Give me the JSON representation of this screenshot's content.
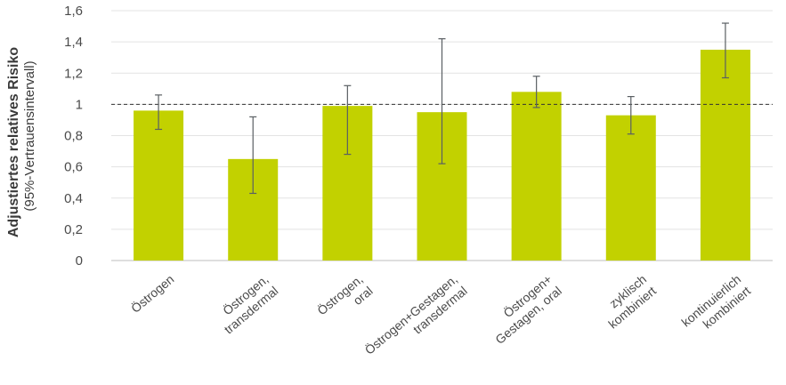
{
  "chart_data": {
    "type": "bar",
    "ylabel": "Adjustiertes relatives  Risiko",
    "ylabel_sub": "(95%-Vertrauensintervall)",
    "ylim": [
      0,
      1.6
    ],
    "y_ticks": [
      0,
      0.2,
      0.4,
      0.6,
      0.8,
      1,
      1.2,
      1.4,
      1.6
    ],
    "y_tick_labels": [
      "0",
      "0,2",
      "0,4",
      "0,6",
      "0,8",
      "1",
      "1,2",
      "1,4",
      "1,6"
    ],
    "reference_line": 1,
    "grid": true,
    "bar_color": "#c2d100",
    "categories": [
      [
        "Östrogen"
      ],
      [
        "Östrogen,",
        "transdermal"
      ],
      [
        "Östrogen,",
        "oral"
      ],
      [
        "Östrogen+Gestagen,",
        "transdermal"
      ],
      [
        "Östrogen+",
        "Gestagen, oral"
      ],
      [
        "zyklisch",
        "kombiniert"
      ],
      [
        "kontinuierlich",
        "kombiniert"
      ]
    ],
    "values": [
      0.96,
      0.65,
      0.99,
      0.95,
      1.08,
      0.93,
      1.35
    ],
    "ci_low": [
      0.84,
      0.43,
      0.68,
      0.62,
      0.98,
      0.81,
      1.17
    ],
    "ci_high": [
      1.06,
      0.92,
      1.12,
      1.42,
      1.18,
      1.05,
      1.52
    ]
  }
}
